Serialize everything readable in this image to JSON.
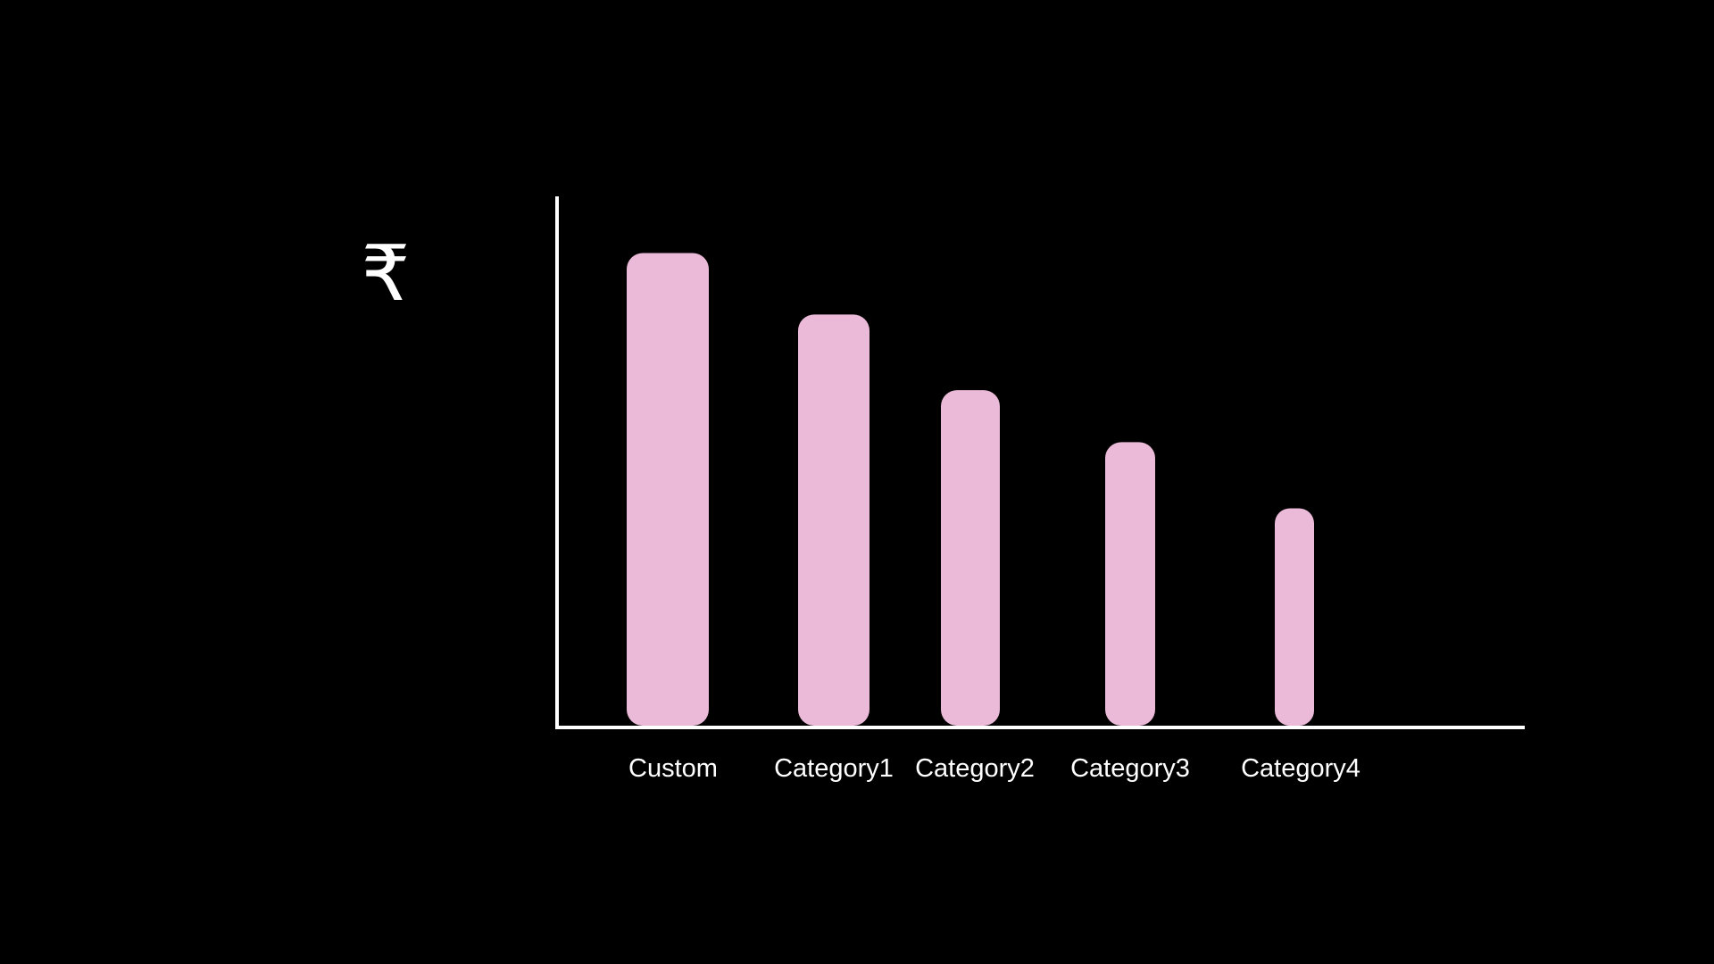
{
  "chart_data": {
    "type": "bar",
    "categories": [
      "Custom",
      "Category1",
      "Category2",
      "Category3",
      "Category4"
    ],
    "values": [
      100,
      87,
      71,
      60,
      46
    ],
    "ylabel": "₹",
    "ylim": [
      0,
      112
    ],
    "grid": false,
    "bar_color": "#ecbad9",
    "axis_color": "#ffffff",
    "background": "#000000"
  }
}
